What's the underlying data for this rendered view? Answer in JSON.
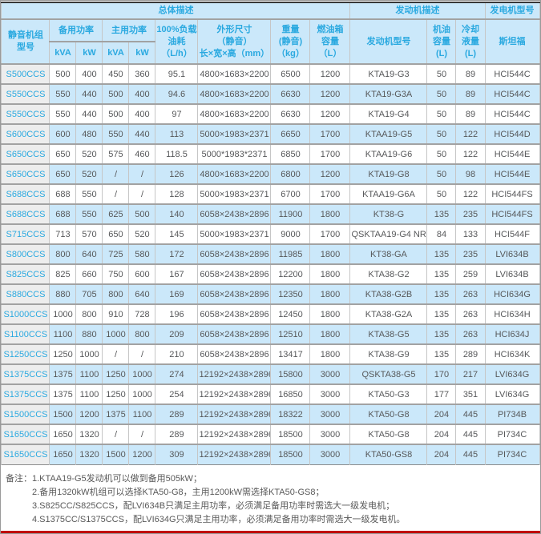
{
  "header": {
    "groups": {
      "overall": "总体描述",
      "engine": "发动机描述",
      "alternator": "发电机型号"
    },
    "cols": {
      "model": "静音机组\n型号",
      "standby": "备用功率",
      "prime": "主用功率",
      "standby_kva": "kVA",
      "standby_kw": "kW",
      "prime_kva": "kVA",
      "prime_kw": "kW",
      "fuel": "100%负载\n油耗\n（L/h）",
      "dims": "外形尺寸\n（静音）\n长×宽×高（mm）",
      "weight": "重量\n(静音)\n（kg）",
      "tank": "燃油箱\n容量\n（L）",
      "engine_model": "发动机型号",
      "oil": "机油\n容量\n(L)",
      "coolant": "冷却\n液量\n(L)",
      "stamford": "斯坦福"
    }
  },
  "rows": [
    {
      "model": "S500CCS",
      "standby_kva": "500",
      "standby_kw": "400",
      "prime_kva": "450",
      "prime_kw": "360",
      "fuel": "95.1",
      "dims": "4800×1683×2200",
      "weight": "6500",
      "tank": "1200",
      "engine": "KTA19-G3",
      "oil": "50",
      "coolant": "89",
      "alternator": "HCI544C"
    },
    {
      "model": "S550CCS",
      "standby_kva": "550",
      "standby_kw": "440",
      "prime_kva": "500",
      "prime_kw": "400",
      "fuel": "94.6",
      "dims": "4800×1683×2200",
      "weight": "6630",
      "tank": "1200",
      "engine": "KTA19-G3A",
      "oil": "50",
      "coolant": "89",
      "alternator": "HCI544C"
    },
    {
      "model": "S550CCS",
      "standby_kva": "550",
      "standby_kw": "440",
      "prime_kva": "500",
      "prime_kw": "400",
      "fuel": "97",
      "dims": "4800×1683×2200",
      "weight": "6630",
      "tank": "1200",
      "engine": "KTA19-G4",
      "oil": "50",
      "coolant": "89",
      "alternator": "HCI544C"
    },
    {
      "model": "S600CCS",
      "standby_kva": "600",
      "standby_kw": "480",
      "prime_kva": "550",
      "prime_kw": "440",
      "fuel": "113",
      "dims": "5000×1983×2371",
      "weight": "6650",
      "tank": "1700",
      "engine": "KTAA19-G5",
      "oil": "50",
      "coolant": "122",
      "alternator": "HCI544D"
    },
    {
      "model": "S650CCS",
      "standby_kva": "650",
      "standby_kw": "520",
      "prime_kva": "575",
      "prime_kw": "460",
      "fuel": "118.5",
      "dims": "5000*1983*2371",
      "weight": "6850",
      "tank": "1700",
      "engine": "KTAA19-G6",
      "oil": "50",
      "coolant": "122",
      "alternator": "HCI544E"
    },
    {
      "model": "S650CCS",
      "standby_kva": "650",
      "standby_kw": "520",
      "prime_kva": "/",
      "prime_kw": "/",
      "fuel": "126",
      "dims": "4800×1683×2200",
      "weight": "6800",
      "tank": "1200",
      "engine": "KTA19-G8",
      "oil": "50",
      "coolant": "98",
      "alternator": "HCI544E"
    },
    {
      "model": "S688CCS",
      "standby_kva": "688",
      "standby_kw": "550",
      "prime_kva": "/",
      "prime_kw": "/",
      "fuel": "128",
      "dims": "5000×1983×2371",
      "weight": "6700",
      "tank": "1700",
      "engine": "KTAA19-G6A",
      "oil": "50",
      "coolant": "122",
      "alternator": "HCI544FS"
    },
    {
      "model": "S688CCS",
      "standby_kva": "688",
      "standby_kw": "550",
      "prime_kva": "625",
      "prime_kw": "500",
      "fuel": "140",
      "dims": "6058×2438×2896",
      "weight": "11900",
      "tank": "1800",
      "engine": "KT38-G",
      "oil": "135",
      "coolant": "235",
      "alternator": "HCI544FS"
    },
    {
      "model": "S715CCS",
      "standby_kva": "713",
      "standby_kw": "570",
      "prime_kva": "650",
      "prime_kw": "520",
      "fuel": "145",
      "dims": "5000×1983×2371",
      "weight": "9000",
      "tank": "1700",
      "engine": "QSKTAA19-G4 NR2",
      "oil": "84",
      "coolant": "133",
      "alternator": "HCI544F"
    },
    {
      "model": "S800CCS",
      "standby_kva": "800",
      "standby_kw": "640",
      "prime_kva": "725",
      "prime_kw": "580",
      "fuel": "172",
      "dims": "6058×2438×2896",
      "weight": "11985",
      "tank": "1800",
      "engine": "KT38-GA",
      "oil": "135",
      "coolant": "235",
      "alternator": "LVI634B"
    },
    {
      "model": "S825CCS",
      "standby_kva": "825",
      "standby_kw": "660",
      "prime_kva": "750",
      "prime_kw": "600",
      "fuel": "167",
      "dims": "6058×2438×2896",
      "weight": "12200",
      "tank": "1800",
      "engine": "KTA38-G2",
      "oil": "135",
      "coolant": "259",
      "alternator": "LVI634B"
    },
    {
      "model": "S880CCS",
      "standby_kva": "880",
      "standby_kw": "705",
      "prime_kva": "800",
      "prime_kw": "640",
      "fuel": "169",
      "dims": "6058×2438×2896",
      "weight": "12350",
      "tank": "1800",
      "engine": "KTA38-G2B",
      "oil": "135",
      "coolant": "263",
      "alternator": "HCI634G"
    },
    {
      "model": "S1000CCS",
      "standby_kva": "1000",
      "standby_kw": "800",
      "prime_kva": "910",
      "prime_kw": "728",
      "fuel": "196",
      "dims": "6058×2438×2896",
      "weight": "12450",
      "tank": "1800",
      "engine": "KTA38-G2A",
      "oil": "135",
      "coolant": "263",
      "alternator": "HCI634H"
    },
    {
      "model": "S1100CCS",
      "standby_kva": "1100",
      "standby_kw": "880",
      "prime_kva": "1000",
      "prime_kw": "800",
      "fuel": "209",
      "dims": "6058×2438×2896",
      "weight": "12510",
      "tank": "1800",
      "engine": "KTA38-G5",
      "oil": "135",
      "coolant": "263",
      "alternator": "HCI634J"
    },
    {
      "model": "S1250CCS",
      "standby_kva": "1250",
      "standby_kw": "1000",
      "prime_kva": "/",
      "prime_kw": "/",
      "fuel": "210",
      "dims": "6058×2438×2896",
      "weight": "13417",
      "tank": "1800",
      "engine": "KTA38-G9",
      "oil": "135",
      "coolant": "289",
      "alternator": "HCI634K"
    },
    {
      "model": "S1375CCS",
      "standby_kva": "1375",
      "standby_kw": "1100",
      "prime_kva": "1250",
      "prime_kw": "1000",
      "fuel": "274",
      "dims": "12192×2438×2896",
      "weight": "15800",
      "tank": "3000",
      "engine": "QSKTA38-G5",
      "oil": "170",
      "coolant": "217",
      "alternator": "LVI634G"
    },
    {
      "model": "S1375CCS",
      "standby_kva": "1375",
      "standby_kw": "1100",
      "prime_kva": "1250",
      "prime_kw": "1000",
      "fuel": "254",
      "dims": "12192×2438×2896",
      "weight": "16850",
      "tank": "3000",
      "engine": "KTA50-G3",
      "oil": "177",
      "coolant": "351",
      "alternator": "LVI634G"
    },
    {
      "model": "S1500CCS",
      "standby_kva": "1500",
      "standby_kw": "1200",
      "prime_kva": "1375",
      "prime_kw": "1100",
      "fuel": "289",
      "dims": "12192×2438×2896",
      "weight": "18322",
      "tank": "3000",
      "engine": "KTA50-G8",
      "oil": "204",
      "coolant": "445",
      "alternator": "PI734B"
    },
    {
      "model": "S1650CCS",
      "standby_kva": "1650",
      "standby_kw": "1320",
      "prime_kva": "/",
      "prime_kw": "/",
      "fuel": "289",
      "dims": "12192×2438×2896",
      "weight": "18500",
      "tank": "3000",
      "engine": "KTA50-G8",
      "oil": "204",
      "coolant": "445",
      "alternator": "PI734C"
    },
    {
      "model": "S1650CCS",
      "standby_kva": "1650",
      "standby_kw": "1320",
      "prime_kva": "1500",
      "prime_kw": "1200",
      "fuel": "309",
      "dims": "12192×2438×2896",
      "weight": "18500",
      "tank": "3000",
      "engine": "KTA50-GS8",
      "oil": "204",
      "coolant": "445",
      "alternator": "PI734C"
    }
  ],
  "notes": {
    "label": "备注：",
    "items": [
      "1.KTAA19-G5发动机可以做到备用505kW；",
      "2.备用1320kW机组可以选择KTA50-G8，主用1200kW需选择KTA50-GS8；",
      "3.S825CC/S825CCS，配LVI634B只满足主用功率，必须满足备用功率时需选大一级发电机；",
      "4.S1375CC/S1375CCS，配LVI634G只满足主用功率，必须满足备用功率时需选大一级发电机。"
    ]
  },
  "colors": {
    "accent_blue": "#2aa9e0",
    "stripe_blue": "#cbe8fa",
    "first_col_gray": "#ededed",
    "data_text_gray": "#57585a",
    "bottom_line_red": "#c00000"
  }
}
